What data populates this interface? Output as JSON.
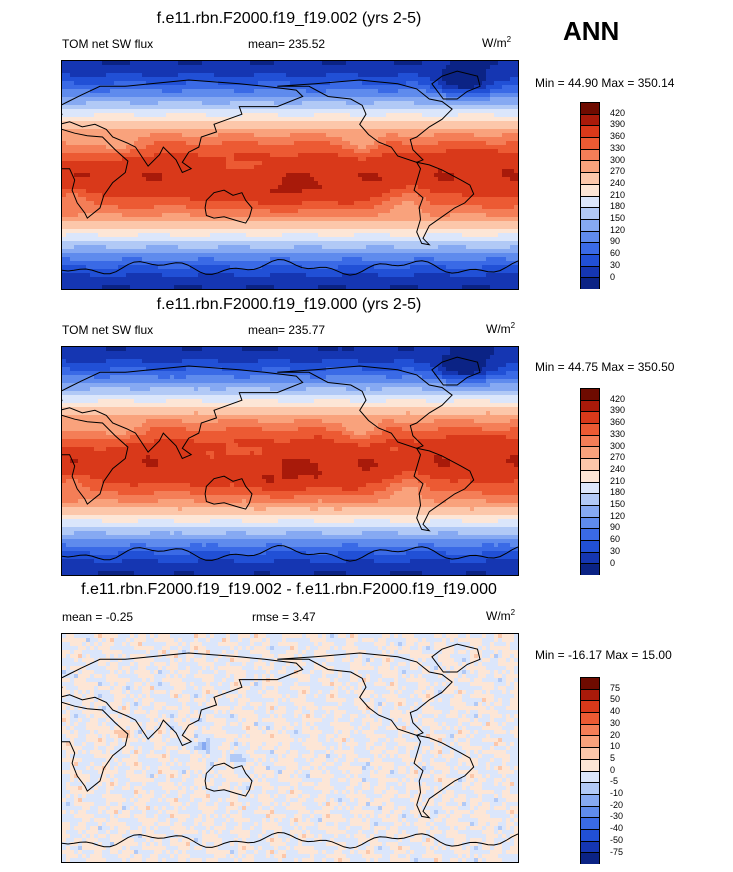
{
  "season": "ANN",
  "panels": [
    {
      "title": "f.e11.rbn.F2000.f19_f19.002 (yrs 2-5)",
      "left_label": "TOM net SW flux",
      "center_label": "mean= 235.52",
      "unit_base": "W/m",
      "unit_sup": "2",
      "minmax": "Min =  44.90 Max = 350.14"
    },
    {
      "title": "f.e11.rbn.F2000.f19_f19.000 (yrs 2-5)",
      "left_label": "TOM net SW flux",
      "center_label": "mean= 235.77",
      "unit_base": "W/m",
      "unit_sup": "2",
      "minmax": "Min =  44.75 Max = 350.50"
    },
    {
      "title": "f.e11.rbn.F2000.f19_f19.002 - f.e11.rbn.F2000.f19_f19.000",
      "left_label": "mean =  -0.25",
      "center_label": "rmse =   3.47",
      "unit_base": "W/m",
      "unit_sup": "2",
      "minmax": "Min = -16.17 Max =  15.00"
    }
  ],
  "chart_data": [
    {
      "type": "heatmap",
      "title": "f.e11.rbn.F2000.f19_f19.002 (yrs 2-5)",
      "variable": "TOM net SW flux",
      "mean": 235.52,
      "min": 44.9,
      "max": 350.14,
      "levels": [
        0,
        30,
        60,
        90,
        120,
        150,
        180,
        210,
        240,
        270,
        300,
        330,
        360,
        390,
        420
      ],
      "colors": [
        "#0b2385",
        "#1536b2",
        "#2150d6",
        "#3a6ae6",
        "#5f8bed",
        "#86a9f2",
        "#b1c9f6",
        "#dbe6fb",
        "#fde6d6",
        "#fcc7aa",
        "#f9a27c",
        "#f47e57",
        "#ec5a33",
        "#d9391a",
        "#a81a0a",
        "#6e0b00"
      ]
    },
    {
      "type": "heatmap",
      "title": "f.e11.rbn.F2000.f19_f19.000 (yrs 2-5)",
      "variable": "TOM net SW flux",
      "mean": 235.77,
      "min": 44.75,
      "max": 350.5,
      "levels": [
        0,
        30,
        60,
        90,
        120,
        150,
        180,
        210,
        240,
        270,
        300,
        330,
        360,
        390,
        420
      ],
      "colors": [
        "#0b2385",
        "#1536b2",
        "#2150d6",
        "#3a6ae6",
        "#5f8bed",
        "#86a9f2",
        "#b1c9f6",
        "#dbe6fb",
        "#fde6d6",
        "#fcc7aa",
        "#f9a27c",
        "#f47e57",
        "#ec5a33",
        "#d9391a",
        "#a81a0a",
        "#6e0b00"
      ]
    },
    {
      "type": "heatmap",
      "title": "f.e11.rbn.F2000.f19_f19.002 - f.e11.rbn.F2000.f19_f19.000",
      "mean": -0.25,
      "rmse": 3.47,
      "min": -16.17,
      "max": 15.0,
      "levels": [
        -75,
        -50,
        -40,
        -30,
        -20,
        -10,
        -5,
        0,
        5,
        10,
        20,
        30,
        40,
        50,
        75
      ],
      "colors": [
        "#0b2385",
        "#1536b2",
        "#2150d6",
        "#3a6ae6",
        "#5f8bed",
        "#86a9f2",
        "#b1c9f6",
        "#dbe6fb",
        "#fde6d6",
        "#fcc7aa",
        "#f9a27c",
        "#f47e57",
        "#ec5a33",
        "#d9391a",
        "#a81a0a",
        "#6e0b00"
      ]
    }
  ]
}
